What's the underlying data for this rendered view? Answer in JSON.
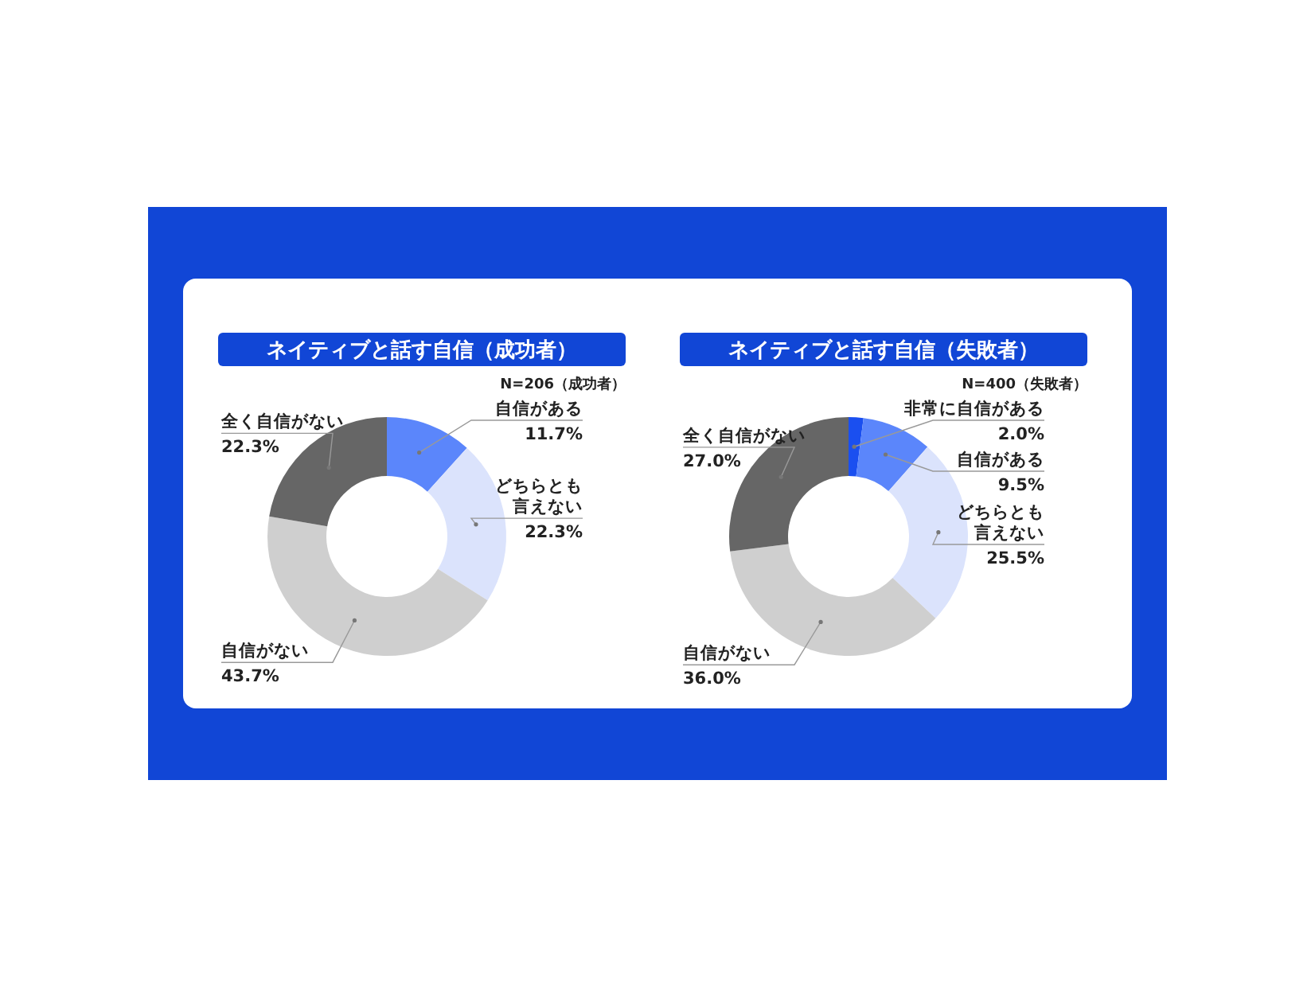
{
  "chart_data": [
    {
      "type": "donut",
      "title": "ネイティブと話す自信（成功者）",
      "subtitle": "N=206（成功者）",
      "categories": [
        "自信がある",
        "どちらとも言えない",
        "自信がない",
        "全く自信がない"
      ],
      "values": [
        11.7,
        22.3,
        43.7,
        22.3
      ],
      "value_labels": [
        "11.7%",
        "22.3%",
        "43.7%",
        "22.3%"
      ],
      "colors": [
        "#5b86fb",
        "#dbe3fc",
        "#cfcfcf",
        "#666666"
      ],
      "legend": false
    },
    {
      "type": "donut",
      "title": "ネイティブと話す自信（失敗者）",
      "subtitle": "N=400（失敗者）",
      "categories": [
        "非常に自信がある",
        "自信がある",
        "どちらとも言えない",
        "自信がない",
        "全く自信がない"
      ],
      "values": [
        2.0,
        9.5,
        25.5,
        36.0,
        27.0
      ],
      "value_labels": [
        "2.0%",
        "9.5%",
        "25.5%",
        "36.0%",
        "27.0%"
      ],
      "colors": [
        "#1a4ff0",
        "#5b86fb",
        "#dbe3fc",
        "#cfcfcf",
        "#666666"
      ],
      "legend": false
    }
  ]
}
